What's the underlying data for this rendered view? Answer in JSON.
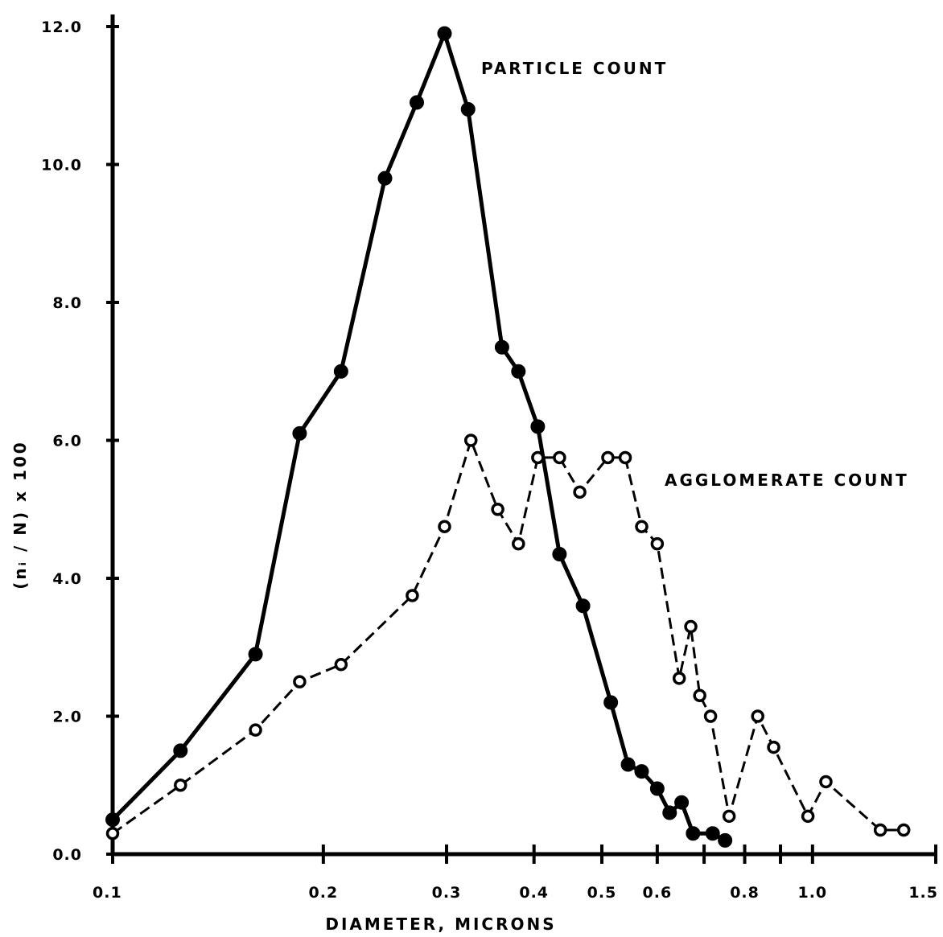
{
  "chart_data": {
    "type": "line",
    "title": "",
    "xlabel": "DIAMETER, MICRONS",
    "ylabel": "(nᵢ / N) x 100",
    "x_scale": "log",
    "xlim": [
      0.1,
      1.5
    ],
    "ylim": [
      0,
      12
    ],
    "grid": false,
    "x_ticks": [
      {
        "value": 0.1,
        "label": "0.1"
      },
      {
        "value": 0.2,
        "label": "0.2"
      },
      {
        "value": 0.3,
        "label": "0.3"
      },
      {
        "value": 0.4,
        "label": "0.4"
      },
      {
        "value": 0.5,
        "label": "0.5"
      },
      {
        "value": 0.6,
        "label": "0.6"
      },
      {
        "value": 0.8,
        "label": "0.8"
      },
      {
        "value": 1.0,
        "label": "1.0"
      },
      {
        "value": 1.5,
        "label": "1.5"
      }
    ],
    "x_minor_ticks": [
      0.7,
      0.9
    ],
    "y_ticks": [
      {
        "value": 0,
        "label": "0.0"
      },
      {
        "value": 2,
        "label": "2.0"
      },
      {
        "value": 4,
        "label": "4.0"
      },
      {
        "value": 6,
        "label": "6.0"
      },
      {
        "value": 8,
        "label": "8.0"
      },
      {
        "value": 10,
        "label": "10.0"
      },
      {
        "value": 12,
        "label": "12.0"
      }
    ],
    "annotations": [
      {
        "text": "PARTICLE COUNT",
        "series": "particle",
        "x": 0.3,
        "y": 11.6
      },
      {
        "text": "AGGLOMERATE COUNT",
        "series": "agglomerate",
        "x": 0.6,
        "y": 5.45
      }
    ],
    "series": [
      {
        "key": "particle",
        "marker": "filled-circle",
        "line": "solid",
        "color": "#000000",
        "x": [
          0.1,
          0.125,
          0.16,
          0.185,
          0.212,
          0.245,
          0.272,
          0.298,
          0.322,
          0.36,
          0.38,
          0.405,
          0.435,
          0.47,
          0.515,
          0.545,
          0.57,
          0.6,
          0.625,
          0.65,
          0.675,
          0.72,
          0.75
        ],
        "y": [
          0.5,
          1.5,
          2.9,
          6.1,
          7.0,
          9.8,
          10.9,
          11.9,
          10.8,
          7.35,
          7.0,
          6.2,
          4.35,
          3.6,
          2.2,
          1.3,
          1.2,
          0.95,
          0.6,
          0.75,
          0.3,
          0.3,
          0.2
        ]
      },
      {
        "key": "agglomerate",
        "marker": "open-circle",
        "line": "dashed",
        "color": "#000000",
        "x": [
          0.1,
          0.125,
          0.16,
          0.185,
          0.212,
          0.268,
          0.298,
          0.325,
          0.355,
          0.38,
          0.405,
          0.435,
          0.465,
          0.51,
          0.54,
          0.57,
          0.6,
          0.645,
          0.67,
          0.69,
          0.715,
          0.76,
          0.835,
          0.88,
          0.985,
          1.045,
          1.25,
          1.35
        ],
        "y": [
          0.3,
          1.0,
          1.8,
          2.5,
          2.75,
          3.75,
          4.75,
          6.0,
          5.0,
          4.5,
          5.75,
          5.75,
          5.25,
          5.75,
          5.75,
          4.75,
          4.5,
          2.55,
          3.3,
          2.3,
          2.0,
          0.55,
          2.0,
          1.55,
          0.55,
          1.05,
          0.35,
          0.35
        ]
      }
    ]
  }
}
